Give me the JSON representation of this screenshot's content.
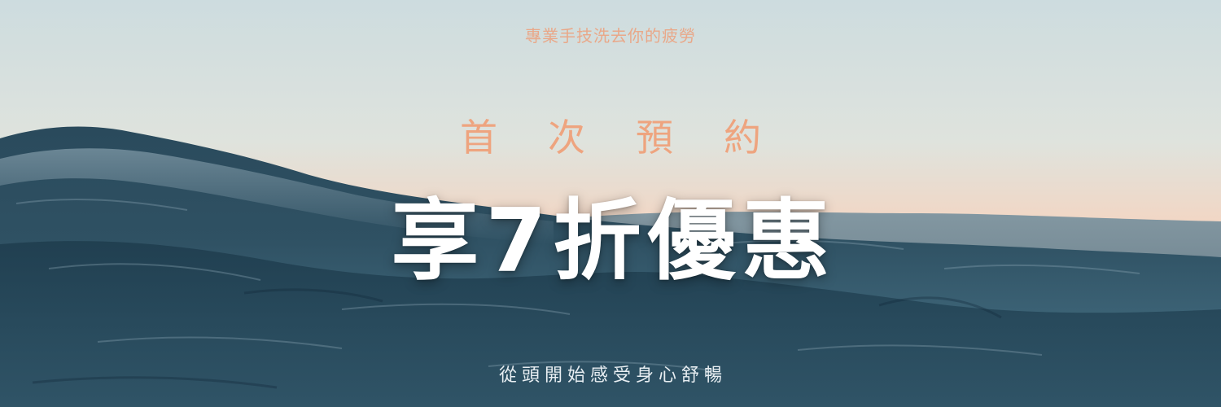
{
  "banner": {
    "tagline": "專業手技洗去你的疲勞",
    "subtitle": "首次預約",
    "headline": "享7折優惠",
    "footer": "從頭開始感受身心舒暢"
  },
  "colors": {
    "tagline": "#e9a889",
    "subtitle": "#eea47f",
    "headline": "#ffffff",
    "footer": "#e8eef2",
    "sky_top": "#cfdde0",
    "sky_horizon": "#f2d2c0",
    "sea_dark": "#1d3b4d",
    "sea_mid": "#3b5f72"
  },
  "background": {
    "image_name": "ocean-wave-photo"
  }
}
